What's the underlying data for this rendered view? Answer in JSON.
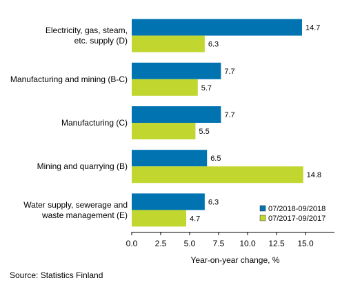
{
  "chart_data": {
    "type": "bar",
    "orientation": "horizontal",
    "categories": [
      [
        "Electricity, gas, steam,",
        "etc. supply (D)"
      ],
      [
        "Manufacturing and mining (B-C)"
      ],
      [
        "Manufacturing (C)"
      ],
      [
        "Mining and quarrying (B)"
      ],
      [
        "Water supply, sewerage and",
        "waste management (E)"
      ]
    ],
    "series": [
      {
        "name": "07/2018-09/2018",
        "color": "#0073b0",
        "values": [
          14.7,
          7.7,
          7.7,
          6.5,
          6.3
        ],
        "labels": [
          "14.7",
          "7.7",
          "7.7",
          "6.5",
          "6.3"
        ]
      },
      {
        "name": "07/2017-09/2017",
        "color": "#c1d72f",
        "values": [
          6.3,
          5.7,
          5.5,
          14.8,
          4.7
        ],
        "labels": [
          "6.3",
          "5.7",
          "5.5",
          "14.8",
          "4.7"
        ]
      }
    ],
    "xlabel": "Year-on-year change, %",
    "xlim": [
      0,
      17.5
    ],
    "xticks": [
      0,
      2.5,
      5,
      7.5,
      10,
      12.5,
      15
    ],
    "xtick_labels": [
      "0.0",
      "2.5",
      "5.0",
      "7.5",
      "10.0",
      "12.5",
      "15.0"
    ],
    "grid": false,
    "legend_position": "bottom-right"
  },
  "source_text": "Source: Statistics Finland"
}
